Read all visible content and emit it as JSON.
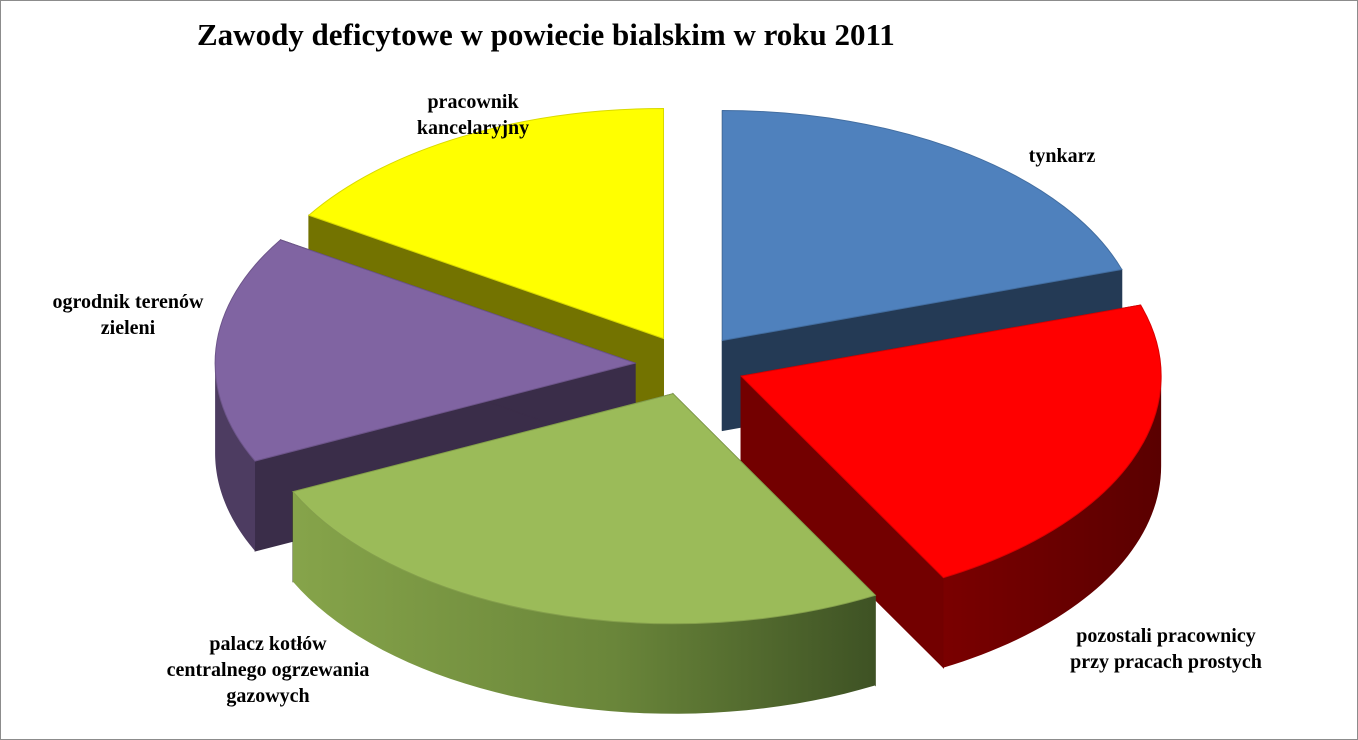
{
  "chart_data": {
    "type": "pie",
    "title": "Zawody deficytowe w powiecie bialskim w roku 2011",
    "categories": [
      "tynkarz",
      "pozostali pracownicy przy pracach prostych",
      "palacz kotłów centralnego ogrzewania gazowych",
      "ogrodnik terenów zieleni",
      "pracownik kancelaryjny"
    ],
    "label_lines": [
      [
        "tynkarz"
      ],
      [
        "pozostali pracownicy",
        "przy pracach prostych"
      ],
      [
        "palacz kotłów",
        "centralnego ogrzewania",
        "gazowych"
      ],
      [
        "ogrodnik terenów",
        "zieleni"
      ],
      [
        "pracownik",
        "kancelaryjny"
      ]
    ],
    "values": [
      20,
      22,
      26,
      16,
      16
    ],
    "colors": [
      "#4f81bd",
      "#ff0000",
      "#9bbb59",
      "#8064a2",
      "#ffff00"
    ],
    "style": "exploded 3-D pie",
    "legend": "none (category labels next to slices)"
  }
}
